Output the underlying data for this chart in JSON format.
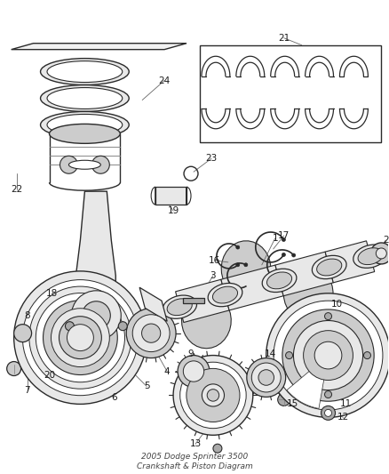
{
  "title": "2005 Dodge Sprinter 3500\nCrankshaft & Piston Diagram",
  "bg_color": "#ffffff",
  "line_color": "#2a2a2a",
  "text_color": "#1a1a1a",
  "figsize": [
    4.38,
    5.33
  ],
  "dpi": 100,
  "gray_light": "#e8e8e8",
  "gray_mid": "#cccccc",
  "gray_dark": "#aaaaaa",
  "label_fs": 7.5
}
